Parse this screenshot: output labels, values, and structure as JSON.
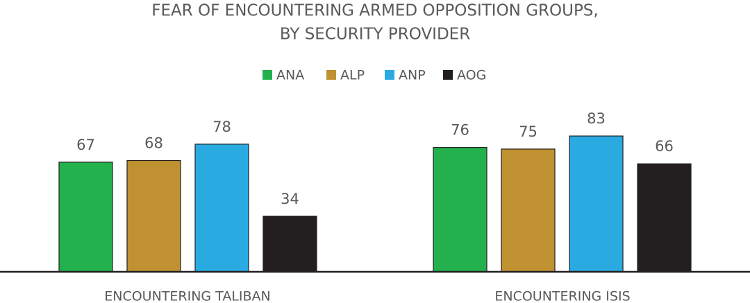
{
  "chart_data": {
    "type": "bar",
    "title": [
      "FEAR OF ENCOUNTERING ARMED OPPOSITION GROUPS,",
      "BY SECURITY PROVIDER"
    ],
    "categories": [
      "ENCOUNTERING TALIBAN",
      "ENCOUNTERING ISIS"
    ],
    "series": [
      {
        "name": "ANA",
        "color": "#22b14c",
        "values": [
          67,
          76
        ]
      },
      {
        "name": "ALP",
        "color": "#bf9130",
        "values": [
          68,
          75
        ]
      },
      {
        "name": "ANP",
        "color": "#29abe2",
        "values": [
          78,
          83
        ]
      },
      {
        "name": "AOG",
        "color": "#231f20",
        "values": [
          34,
          66
        ]
      }
    ],
    "legend": "top"
  }
}
